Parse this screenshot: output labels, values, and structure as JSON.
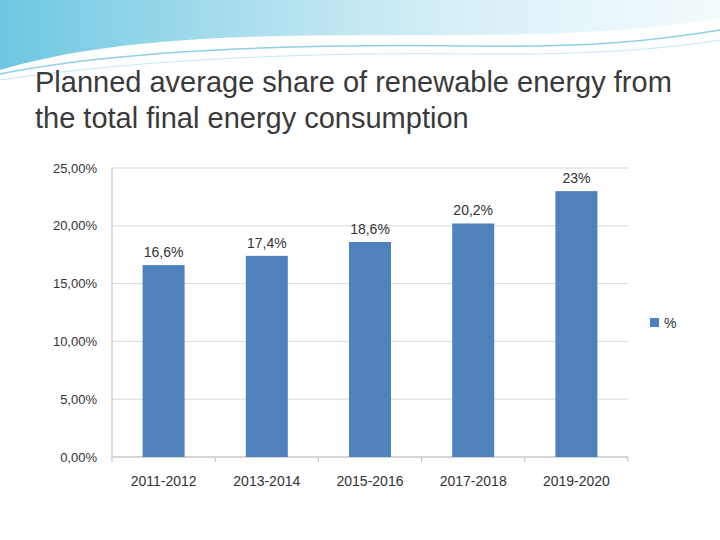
{
  "chart_data": {
    "type": "bar",
    "title": "Planned average share of renewable energy from the total final energy consumption",
    "categories": [
      "2011-2012",
      "2013-2014",
      "2015-2016",
      "2017-2018",
      "2019-2020"
    ],
    "series": [
      {
        "name": "%",
        "color": "#4f81bd",
        "values": [
          16.6,
          17.4,
          18.6,
          20.2,
          23
        ],
        "value_labels": [
          "16,6%",
          "17,4%",
          "18,6%",
          "20,2%",
          "23%"
        ]
      }
    ],
    "ylim": [
      0,
      25
    ],
    "yticks": [
      {
        "value": 0,
        "label": "0,00%"
      },
      {
        "value": 5,
        "label": "5,00%"
      },
      {
        "value": 10,
        "label": "10,00%"
      },
      {
        "value": 15,
        "label": "15,00%"
      },
      {
        "value": 20,
        "label": "20,00%"
      },
      {
        "value": 25,
        "label": "25,00%"
      }
    ],
    "grid": true,
    "legend": "right",
    "data_labels": true
  }
}
